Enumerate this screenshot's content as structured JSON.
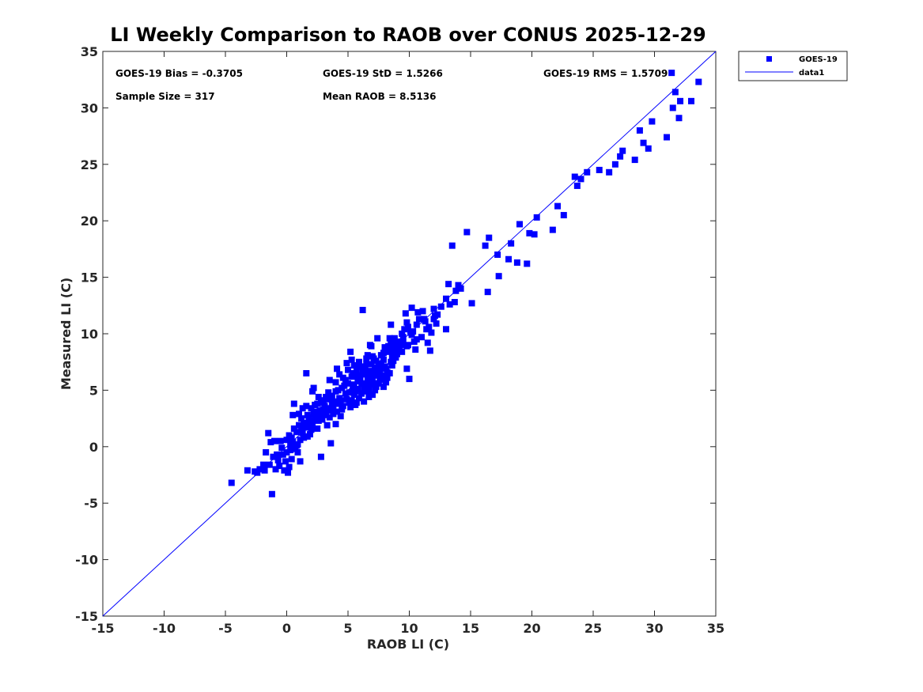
{
  "chart_data": {
    "type": "scatter",
    "title": "LI Weekly Comparison to RAOB over CONUS 2025-12-29",
    "xlabel": "RAOB LI (C)",
    "ylabel": "Measured LI (C)",
    "xlim": [
      -15,
      35
    ],
    "ylim": [
      -15,
      35
    ],
    "xticks": [
      "-15",
      "-10",
      "-5",
      "0",
      "5",
      "10",
      "15",
      "20",
      "25",
      "30",
      "35"
    ],
    "yticks": [
      "-15",
      "-10",
      "-5",
      "0",
      "5",
      "10",
      "15",
      "20",
      "25",
      "30",
      "35"
    ],
    "grid": false,
    "legend_placement": "outside top-right",
    "stats": {
      "bias": "GOES-19 Bias = -0.3705",
      "std": "GOES-19 StD = 1.5266",
      "rms": "GOES-19 RMS = 1.5709",
      "sample": "Sample Size = 317",
      "mean": "Mean RAOB = 8.5136"
    },
    "series": [
      {
        "name": "GOES-19",
        "kind": "scatter",
        "marker": "square",
        "color": "#0000ff",
        "points": [
          [
            -4.5,
            -3.2
          ],
          [
            -3.2,
            -2.1
          ],
          [
            -2.6,
            -2.2
          ],
          [
            -2.4,
            -2.3
          ],
          [
            -1.8,
            -2.1
          ],
          [
            -1.4,
            -1.6
          ],
          [
            -1.2,
            -4.2
          ],
          [
            -1.5,
            1.2
          ],
          [
            -1.3,
            0.4
          ],
          [
            -1.0,
            0.5
          ],
          [
            -0.7,
            -1.2
          ],
          [
            -0.5,
            0.5
          ],
          [
            -0.2,
            -2.1
          ],
          [
            0.1,
            -2.3
          ],
          [
            0.2,
            -1.8
          ],
          [
            0.3,
            -0.3
          ],
          [
            0.4,
            0.8
          ],
          [
            0.5,
            2.8
          ],
          [
            0.6,
            3.8
          ],
          [
            0.8,
            0.1
          ],
          [
            0.9,
            -0.5
          ],
          [
            1.1,
            -1.3
          ],
          [
            1.2,
            1.5
          ],
          [
            1.3,
            3.4
          ],
          [
            1.5,
            2.0
          ],
          [
            1.6,
            6.5
          ],
          [
            1.8,
            2.6
          ],
          [
            2.0,
            1.8
          ],
          [
            2.1,
            4.9
          ],
          [
            2.2,
            5.2
          ],
          [
            2.4,
            3.1
          ],
          [
            2.6,
            2.3
          ],
          [
            2.8,
            -0.9
          ],
          [
            3.0,
            4.1
          ],
          [
            3.2,
            2.8
          ],
          [
            3.4,
            4.8
          ],
          [
            3.6,
            0.3
          ],
          [
            3.8,
            3.5
          ],
          [
            4.0,
            2.0
          ],
          [
            4.1,
            6.9
          ],
          [
            4.3,
            4.3
          ],
          [
            4.5,
            3.3
          ],
          [
            4.7,
            5.4
          ],
          [
            4.9,
            7.4
          ],
          [
            5.1,
            3.9
          ],
          [
            5.2,
            8.4
          ],
          [
            5.4,
            6.5
          ],
          [
            5.5,
            4.6
          ],
          [
            5.7,
            3.9
          ],
          [
            5.8,
            5.8
          ],
          [
            6.0,
            7.1
          ],
          [
            6.2,
            12.1
          ],
          [
            6.3,
            5.2
          ],
          [
            6.5,
            7.8
          ],
          [
            6.7,
            4.4
          ],
          [
            6.8,
            9.0
          ],
          [
            7.0,
            6.1
          ],
          [
            7.2,
            5.0
          ],
          [
            7.4,
            9.6
          ],
          [
            7.5,
            6.8
          ],
          [
            7.7,
            7.3
          ],
          [
            7.9,
            8.3
          ],
          [
            8.1,
            5.7
          ],
          [
            8.3,
            8.9
          ],
          [
            8.5,
            10.8
          ],
          [
            8.7,
            8.2
          ],
          [
            8.9,
            9.1
          ],
          [
            9.3,
            9.0
          ],
          [
            9.7,
            11.8
          ],
          [
            9.8,
            6.9
          ],
          [
            10.0,
            6.0
          ],
          [
            10.2,
            12.3
          ],
          [
            10.4,
            9.3
          ],
          [
            10.5,
            8.6
          ],
          [
            10.7,
            11.9
          ],
          [
            11.2,
            11.3
          ],
          [
            11.5,
            9.2
          ],
          [
            11.7,
            8.5
          ],
          [
            12.0,
            11.3
          ],
          [
            12.3,
            11.7
          ],
          [
            13.0,
            10.4
          ],
          [
            13.2,
            14.4
          ],
          [
            13.3,
            12.6
          ],
          [
            13.5,
            17.8
          ],
          [
            13.8,
            13.8
          ],
          [
            14.0,
            14.3
          ],
          [
            14.7,
            19.0
          ],
          [
            15.1,
            12.7
          ],
          [
            16.2,
            17.8
          ],
          [
            16.4,
            13.7
          ],
          [
            16.5,
            18.5
          ],
          [
            17.2,
            17.0
          ],
          [
            17.3,
            15.1
          ],
          [
            18.1,
            16.6
          ],
          [
            18.3,
            18.0
          ],
          [
            18.8,
            16.3
          ],
          [
            19.0,
            19.7
          ],
          [
            19.6,
            16.2
          ],
          [
            19.8,
            18.9
          ],
          [
            20.2,
            18.8
          ],
          [
            20.4,
            20.3
          ],
          [
            21.7,
            19.2
          ],
          [
            22.1,
            21.3
          ],
          [
            22.6,
            20.5
          ],
          [
            23.5,
            23.9
          ],
          [
            23.7,
            23.1
          ],
          [
            24.0,
            23.7
          ],
          [
            24.5,
            24.3
          ],
          [
            25.5,
            24.5
          ],
          [
            26.3,
            24.3
          ],
          [
            26.8,
            25.0
          ],
          [
            27.2,
            25.7
          ],
          [
            27.4,
            26.2
          ],
          [
            28.4,
            25.4
          ],
          [
            28.8,
            28.0
          ],
          [
            29.1,
            26.9
          ],
          [
            29.5,
            26.4
          ],
          [
            29.8,
            28.8
          ],
          [
            31.0,
            27.4
          ],
          [
            31.5,
            30.0
          ],
          [
            31.7,
            31.4
          ],
          [
            31.4,
            33.1
          ],
          [
            32.0,
            29.1
          ],
          [
            32.1,
            30.6
          ],
          [
            33.0,
            30.6
          ],
          [
            33.6,
            32.3
          ],
          [
            0.0,
            -0.5
          ],
          [
            0.5,
            0.4
          ],
          [
            1.0,
            1.9
          ],
          [
            1.4,
            0.8
          ],
          [
            1.9,
            1.1
          ],
          [
            2.3,
            2.5
          ],
          [
            2.7,
            3.2
          ],
          [
            3.1,
            3.6
          ],
          [
            3.5,
            2.6
          ],
          [
            3.9,
            4.0
          ],
          [
            4.2,
            5.0
          ],
          [
            4.6,
            3.6
          ],
          [
            5.0,
            5.6
          ],
          [
            5.3,
            4.1
          ],
          [
            5.6,
            6.3
          ],
          [
            5.9,
            4.3
          ],
          [
            6.1,
            5.6
          ],
          [
            6.4,
            6.9
          ],
          [
            6.6,
            4.9
          ],
          [
            6.9,
            5.5
          ],
          [
            7.1,
            6.6
          ],
          [
            7.3,
            7.6
          ],
          [
            7.6,
            5.9
          ],
          [
            7.8,
            6.3
          ],
          [
            8.0,
            7.1
          ],
          [
            8.2,
            6.1
          ],
          [
            8.4,
            9.6
          ],
          [
            8.6,
            8.0
          ],
          [
            8.8,
            8.6
          ],
          [
            9.1,
            9.3
          ],
          [
            9.4,
            8.4
          ],
          [
            9.6,
            10.4
          ],
          [
            9.9,
            9.0
          ],
          [
            10.1,
            10.1
          ],
          [
            10.6,
            10.8
          ],
          [
            11.0,
            9.7
          ],
          [
            11.3,
            11.1
          ],
          [
            11.8,
            10.1
          ],
          [
            12.1,
            11.6
          ],
          [
            12.6,
            12.4
          ],
          [
            -1.9,
            -1.6
          ],
          [
            -1.1,
            -0.9
          ],
          [
            -0.6,
            -1.7
          ],
          [
            -0.3,
            -0.7
          ],
          [
            0.7,
            -0.2
          ],
          [
            1.1,
            0.6
          ],
          [
            1.6,
            1.7
          ],
          [
            2.0,
            3.4
          ],
          [
            2.5,
            1.6
          ],
          [
            2.9,
            2.9
          ],
          [
            3.3,
            1.9
          ],
          [
            3.7,
            4.5
          ],
          [
            4.1,
            3.1
          ],
          [
            4.4,
            2.7
          ],
          [
            4.8,
            4.7
          ],
          [
            5.2,
            3.5
          ],
          [
            5.5,
            7.2
          ],
          [
            5.8,
            5.1
          ],
          [
            6.1,
            4.7
          ],
          [
            6.3,
            6.4
          ],
          [
            6.6,
            6.0
          ],
          [
            6.9,
            7.3
          ],
          [
            7.1,
            5.6
          ],
          [
            7.4,
            6.3
          ],
          [
            7.7,
            8.1
          ],
          [
            7.9,
            5.3
          ],
          [
            8.2,
            6.6
          ],
          [
            8.5,
            9.1
          ],
          [
            8.9,
            7.9
          ],
          [
            9.2,
            8.8
          ],
          [
            9.5,
            9.7
          ],
          [
            9.8,
            11.0
          ],
          [
            10.2,
            9.9
          ],
          [
            10.6,
            9.5
          ],
          [
            11.1,
            12.0
          ],
          [
            11.6,
            10.6
          ],
          [
            12.2,
            10.9
          ],
          [
            13.0,
            13.1
          ],
          [
            13.7,
            12.8
          ],
          [
            14.2,
            14.0
          ],
          [
            0.2,
            1.0
          ],
          [
            0.6,
            1.6
          ],
          [
            1.0,
            2.9
          ],
          [
            1.3,
            1.2
          ],
          [
            1.7,
            2.8
          ],
          [
            2.1,
            2.0
          ],
          [
            2.5,
            3.8
          ],
          [
            2.9,
            2.4
          ],
          [
            3.3,
            3.2
          ],
          [
            3.7,
            3.9
          ],
          [
            4.0,
            5.7
          ],
          [
            4.4,
            4.1
          ],
          [
            4.8,
            5.9
          ],
          [
            5.1,
            4.8
          ],
          [
            5.4,
            5.2
          ],
          [
            5.7,
            6.8
          ],
          [
            6.0,
            5.9
          ],
          [
            6.3,
            4.0
          ],
          [
            6.6,
            8.1
          ],
          [
            6.8,
            6.7
          ],
          [
            7.1,
            7.8
          ],
          [
            7.3,
            5.3
          ],
          [
            7.6,
            6.8
          ],
          [
            7.9,
            7.7
          ],
          [
            8.2,
            8.7
          ],
          [
            8.4,
            6.5
          ],
          [
            8.7,
            7.6
          ],
          [
            9.0,
            8.2
          ],
          [
            9.4,
            10.0
          ],
          [
            9.8,
            8.9
          ],
          [
            -2.2,
            -2.0
          ],
          [
            -1.7,
            -0.5
          ],
          [
            -0.9,
            -2.0
          ],
          [
            -0.4,
            -0.1
          ],
          [
            0.0,
            0.6
          ],
          [
            0.4,
            -1.1
          ],
          [
            0.9,
            0.2
          ],
          [
            1.2,
            2.5
          ],
          [
            1.6,
            3.6
          ],
          [
            2.2,
            2.9
          ],
          [
            2.6,
            4.4
          ],
          [
            3.0,
            3.3
          ],
          [
            3.4,
            4.2
          ],
          [
            3.8,
            2.9
          ],
          [
            4.2,
            3.8
          ],
          [
            4.6,
            6.1
          ],
          [
            4.9,
            4.2
          ],
          [
            5.3,
            6.2
          ],
          [
            5.6,
            3.7
          ],
          [
            5.9,
            7.5
          ],
          [
            6.2,
            6.6
          ],
          [
            6.4,
            5.5
          ],
          [
            6.7,
            6.2
          ],
          [
            7.0,
            4.6
          ],
          [
            7.2,
            7.0
          ],
          [
            7.5,
            5.6
          ],
          [
            7.8,
            6.0
          ],
          [
            8.1,
            6.9
          ],
          [
            8.3,
            8.4
          ],
          [
            8.6,
            7.2
          ],
          [
            8.8,
            9.6
          ],
          [
            9.1,
            8.7
          ],
          [
            9.5,
            9.2
          ],
          [
            9.9,
            10.6
          ],
          [
            10.3,
            10.2
          ],
          [
            10.8,
            11.3
          ],
          [
            11.4,
            10.4
          ],
          [
            12.0,
            12.2
          ],
          [
            0.8,
            1.3
          ],
          [
            1.4,
            2.1
          ],
          [
            2.0,
            1.5
          ],
          [
            2.4,
            2.6
          ],
          [
            2.8,
            3.9
          ],
          [
            3.2,
            4.4
          ],
          [
            3.6,
            3.4
          ],
          [
            4.0,
            4.9
          ],
          [
            4.5,
            5.2
          ],
          [
            5.0,
            6.8
          ],
          [
            5.5,
            5.5
          ],
          [
            6.0,
            6.3
          ],
          [
            6.5,
            7.3
          ],
          [
            7.0,
            8.0
          ],
          [
            7.5,
            7.1
          ],
          [
            8.0,
            8.8
          ],
          [
            -0.8,
            -0.7
          ],
          [
            0.3,
            0.2
          ],
          [
            1.7,
            0.9
          ],
          [
            3.5,
            5.9
          ],
          [
            5.3,
            7.7
          ],
          [
            6.9,
            8.9
          ],
          [
            4.3,
            6.4
          ],
          [
            2.3,
            3.7
          ],
          [
            5.6,
            4.9
          ],
          [
            6.7,
            5.1
          ],
          [
            8.5,
            7.5
          ],
          [
            -0.1,
            -1.3
          ],
          [
            1.9,
            2.3
          ]
        ]
      },
      {
        "name": "data1",
        "kind": "line",
        "color": "#0000ff",
        "points": [
          [
            -15,
            -15
          ],
          [
            35,
            35
          ]
        ]
      }
    ]
  }
}
